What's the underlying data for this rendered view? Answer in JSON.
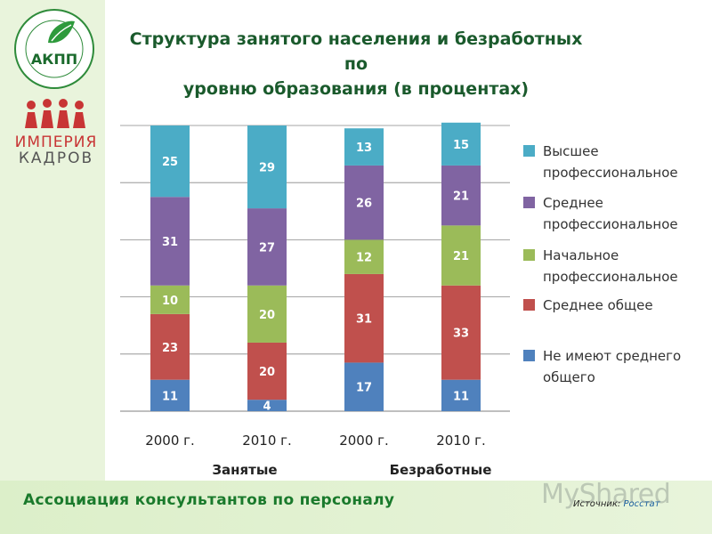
{
  "title": "Структура занятого населения и безработных по уровню образования (в процентах)",
  "title_line1": "Структура занятого населения и безработных по",
  "title_line2": "уровню образования (в процентах)",
  "footer": "Ассоциация консультантов по персоналу",
  "source_label": "Источник:",
  "source_value": "Росстат",
  "watermark": "MyShared",
  "logo": {
    "text": "АКПП",
    "ring_text": "АССОЦИАЦИЯ КОНСУЛЬТАНТОВ ПО ПЕРСОНАЛУ · ASSOCIATION OF PERSONNEL CONSULTANTS"
  },
  "brand": {
    "line1": "ИМПЕРИЯ",
    "line2": "КАДРОВ"
  },
  "colors": {
    "none": "#4f81bd",
    "general": "#c0504d",
    "initial": "#9bbb59",
    "secondary_prof": "#8064a2",
    "higher": "#4bacc6",
    "title": "#1a5a2c",
    "footer": "#1a7a2c"
  },
  "chart_data": {
    "type": "bar",
    "stacked": true,
    "categories": [
      "2000 г.",
      "2010 г.",
      "2000 г.",
      "2010 г."
    ],
    "groups": [
      "Занятые",
      "Безработные"
    ],
    "series": [
      {
        "name": "Не имеют среднего общего",
        "color": "#4f81bd",
        "values": [
          11,
          4,
          17,
          11
        ]
      },
      {
        "name": "Среднее общее",
        "color": "#c0504d",
        "values": [
          23,
          20,
          31,
          33
        ]
      },
      {
        "name": "Начальное профессиональное",
        "color": "#9bbb59",
        "values": [
          10,
          20,
          12,
          21
        ]
      },
      {
        "name": "Среднее профессиональное",
        "color": "#8064a2",
        "values": [
          31,
          27,
          26,
          21
        ]
      },
      {
        "name": "Высшее профессиональное",
        "color": "#4bacc6",
        "values": [
          25,
          29,
          13,
          15
        ]
      }
    ],
    "legend_order": [
      {
        "lines": [
          "Высшее",
          "профессиональное"
        ],
        "color": "#4bacc6"
      },
      {
        "lines": [
          "Среднее",
          "профессиональное"
        ],
        "color": "#8064a2"
      },
      {
        "lines": [
          "Начальное",
          "профессиональное"
        ],
        "color": "#9bbb59"
      },
      {
        "lines": [
          "Среднее общее"
        ],
        "color": "#c0504d"
      },
      {
        "lines": [
          "Не имеют среднего",
          "общего"
        ],
        "color": "#4f81bd"
      }
    ],
    "ylim": [
      0,
      100
    ],
    "grid": true,
    "legend_position": "right"
  }
}
